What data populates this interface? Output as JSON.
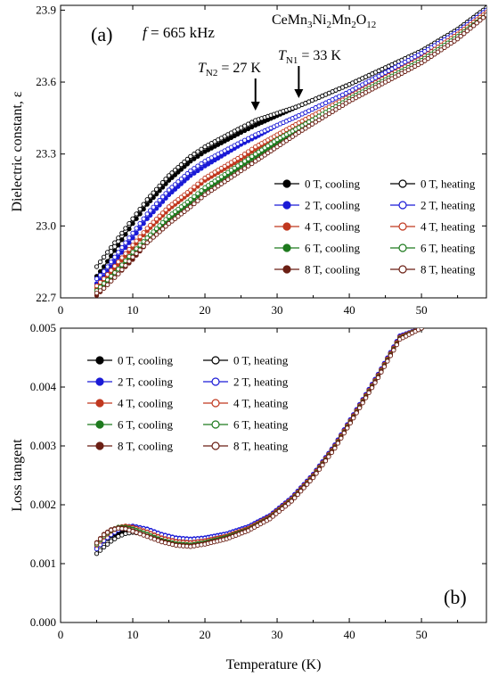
{
  "chart_data": [
    {
      "type": "line",
      "panel_label": "(a)",
      "annotation_freq": {
        "italic": "f",
        "rest": " = 665 kHz"
      },
      "compound": {
        "parts": [
          [
            "CeMn",
            false
          ],
          [
            "3",
            true
          ],
          [
            "Ni",
            false
          ],
          [
            "2",
            true
          ],
          [
            "Mn",
            false
          ],
          [
            "2",
            true
          ],
          [
            "O",
            false
          ],
          [
            "12",
            true
          ]
        ]
      },
      "transitions": [
        {
          "T": "T",
          "sub": "N2",
          "rest": " = 27 K",
          "x": 27
        },
        {
          "T": "T",
          "sub": "N1",
          "rest": " = 33 K",
          "x": 33
        }
      ],
      "ylabel": "Dielectric constant, ε",
      "xlim": [
        0,
        59
      ],
      "ylim": [
        22.7,
        23.92
      ],
      "xticks": [
        "0",
        "10",
        "20",
        "30",
        "40",
        "50"
      ],
      "yticks": [
        "22.7",
        "23.0",
        "23.3",
        "23.6",
        "23.9"
      ],
      "legend_position": "lower-right",
      "x": [
        5,
        6,
        8,
        10,
        12,
        15,
        18,
        20,
        25,
        27,
        30,
        33,
        40,
        45,
        50,
        55,
        59
      ],
      "series": [
        {
          "name": "0 T, cooling",
          "color": "#000000",
          "filled": true,
          "values": [
            22.79,
            22.83,
            22.92,
            23.01,
            23.09,
            23.19,
            23.27,
            23.31,
            23.39,
            23.42,
            23.46,
            23.5,
            23.59,
            23.66,
            23.73,
            23.82,
            23.91
          ]
        },
        {
          "name": "0 T, heating",
          "color": "#000000",
          "filled": false,
          "values": [
            22.83,
            22.87,
            22.95,
            23.03,
            23.11,
            23.21,
            23.29,
            23.33,
            23.41,
            23.44,
            23.47,
            23.5,
            23.59,
            23.66,
            23.73,
            23.82,
            23.91
          ]
        },
        {
          "name": "2 T, cooling",
          "color": "#1a1ad6",
          "filled": true,
          "values": [
            22.76,
            22.79,
            22.87,
            22.95,
            23.03,
            23.13,
            23.21,
            23.25,
            23.34,
            23.37,
            23.42,
            23.46,
            23.56,
            23.64,
            23.72,
            23.81,
            23.9
          ]
        },
        {
          "name": "2 T, heating",
          "color": "#1a1ad6",
          "filled": false,
          "values": [
            22.78,
            22.81,
            22.89,
            22.97,
            23.05,
            23.15,
            23.23,
            23.27,
            23.35,
            23.38,
            23.42,
            23.46,
            23.56,
            23.64,
            23.72,
            23.81,
            23.9
          ]
        },
        {
          "name": "4 T, cooling",
          "color": "#c0381f",
          "filled": true,
          "values": [
            22.74,
            22.77,
            22.84,
            22.91,
            22.98,
            23.07,
            23.14,
            23.19,
            23.28,
            23.32,
            23.38,
            23.43,
            23.54,
            23.62,
            23.7,
            23.8,
            23.89
          ]
        },
        {
          "name": "4 T, heating",
          "color": "#c0381f",
          "filled": false,
          "values": [
            22.75,
            22.78,
            22.85,
            22.92,
            22.99,
            23.08,
            23.15,
            23.2,
            23.29,
            23.33,
            23.38,
            23.43,
            23.54,
            23.62,
            23.7,
            23.8,
            23.89
          ]
        },
        {
          "name": "6 T, cooling",
          "color": "#1e7a1e",
          "filled": true,
          "values": [
            22.73,
            22.75,
            22.82,
            22.88,
            22.95,
            23.03,
            23.1,
            23.15,
            23.25,
            23.29,
            23.35,
            23.41,
            23.53,
            23.61,
            23.69,
            23.79,
            23.88
          ]
        },
        {
          "name": "6 T, heating",
          "color": "#1e7a1e",
          "filled": false,
          "values": [
            22.73,
            22.76,
            22.82,
            22.89,
            22.95,
            23.04,
            23.11,
            23.16,
            23.26,
            23.3,
            23.36,
            23.41,
            23.53,
            23.61,
            23.69,
            23.79,
            23.88
          ]
        },
        {
          "name": "8 T, cooling",
          "color": "#6b1f14",
          "filled": true,
          "values": [
            22.71,
            22.74,
            22.8,
            22.86,
            22.93,
            23.01,
            23.08,
            23.13,
            23.23,
            23.27,
            23.33,
            23.39,
            23.52,
            23.6,
            23.68,
            23.78,
            23.88
          ]
        },
        {
          "name": "8 T, heating",
          "color": "#6b1f14",
          "filled": false,
          "values": [
            22.72,
            22.74,
            22.8,
            22.87,
            22.93,
            23.01,
            23.08,
            23.13,
            23.23,
            23.27,
            23.33,
            23.39,
            23.52,
            23.6,
            23.68,
            23.78,
            23.88
          ]
        }
      ]
    },
    {
      "type": "line",
      "panel_label": "(b)",
      "xlabel": "Temperature (K)",
      "ylabel": "Loss tangent",
      "xlim": [
        0,
        59
      ],
      "ylim": [
        0,
        0.005
      ],
      "xticks": [
        "0",
        "10",
        "20",
        "30",
        "40",
        "50"
      ],
      "yticks": [
        "0.000",
        "0.001",
        "0.002",
        "0.003",
        "0.004",
        "0.005"
      ],
      "legend_position": "upper-left",
      "x": [
        5,
        6,
        7,
        8,
        9,
        10,
        12,
        14,
        16,
        18,
        20,
        23,
        26,
        29,
        32,
        35,
        38,
        41,
        44,
        47,
        50
      ],
      "series": [
        {
          "name": "0 T, cooling",
          "color": "#000000",
          "filled": true,
          "values": [
            0.00125,
            0.00138,
            0.00147,
            0.00152,
            0.00154,
            0.00154,
            0.00149,
            0.00142,
            0.00137,
            0.00136,
            0.00139,
            0.00147,
            0.0016,
            0.0018,
            0.0021,
            0.0025,
            0.003,
            0.0036,
            0.0042,
            0.00485,
            0.005
          ]
        },
        {
          "name": "0 T, heating",
          "color": "#000000",
          "filled": false,
          "values": [
            0.00117,
            0.00128,
            0.00138,
            0.00146,
            0.00151,
            0.00153,
            0.0015,
            0.00144,
            0.00139,
            0.00137,
            0.0014,
            0.00148,
            0.00161,
            0.00181,
            0.00211,
            0.00251,
            0.00301,
            0.00361,
            0.00421,
            0.00486,
            0.005
          ]
        },
        {
          "name": "2 T, cooling",
          "color": "#1a1ad6",
          "filled": true,
          "values": [
            0.00128,
            0.00142,
            0.00152,
            0.00159,
            0.00163,
            0.00164,
            0.00159,
            0.0015,
            0.00144,
            0.00142,
            0.00144,
            0.00151,
            0.00163,
            0.00182,
            0.00212,
            0.00252,
            0.00302,
            0.00362,
            0.00422,
            0.00487,
            0.005
          ]
        },
        {
          "name": "2 T, heating",
          "color": "#1a1ad6",
          "filled": false,
          "values": [
            0.00125,
            0.00139,
            0.00149,
            0.00157,
            0.00162,
            0.00163,
            0.00158,
            0.00149,
            0.00143,
            0.00141,
            0.00143,
            0.0015,
            0.00162,
            0.00181,
            0.00211,
            0.00251,
            0.00301,
            0.00361,
            0.00421,
            0.00486,
            0.005
          ]
        },
        {
          "name": "4 T, cooling",
          "color": "#c0381f",
          "filled": true,
          "values": [
            0.00132,
            0.00146,
            0.00156,
            0.00162,
            0.00164,
            0.00162,
            0.00154,
            0.00144,
            0.00138,
            0.00136,
            0.00139,
            0.00147,
            0.0016,
            0.0018,
            0.0021,
            0.0025,
            0.003,
            0.0036,
            0.0042,
            0.00485,
            0.005
          ]
        },
        {
          "name": "4 T, heating",
          "color": "#c0381f",
          "filled": false,
          "values": [
            0.00131,
            0.00145,
            0.00155,
            0.00161,
            0.00163,
            0.00161,
            0.00153,
            0.00143,
            0.00137,
            0.00135,
            0.00138,
            0.00146,
            0.00159,
            0.00179,
            0.00209,
            0.00249,
            0.00299,
            0.00359,
            0.00419,
            0.00484,
            0.005
          ]
        },
        {
          "name": "6 T, cooling",
          "color": "#1e7a1e",
          "filled": true,
          "values": [
            0.00134,
            0.00148,
            0.00157,
            0.00162,
            0.00162,
            0.00159,
            0.0015,
            0.0014,
            0.00134,
            0.00132,
            0.00136,
            0.00145,
            0.00158,
            0.00178,
            0.00208,
            0.00248,
            0.00298,
            0.00358,
            0.00418,
            0.00483,
            0.005
          ]
        },
        {
          "name": "6 T, heating",
          "color": "#1e7a1e",
          "filled": false,
          "values": [
            0.00133,
            0.00147,
            0.00156,
            0.00161,
            0.00161,
            0.00158,
            0.00149,
            0.00139,
            0.00133,
            0.00131,
            0.00135,
            0.00144,
            0.00157,
            0.00177,
            0.00207,
            0.00247,
            0.00297,
            0.00357,
            0.00417,
            0.00482,
            0.005
          ]
        },
        {
          "name": "8 T, cooling",
          "color": "#6b1f14",
          "filled": true,
          "values": [
            0.00136,
            0.0015,
            0.00158,
            0.00161,
            0.0016,
            0.00156,
            0.00147,
            0.00138,
            0.00132,
            0.0013,
            0.00134,
            0.00143,
            0.00157,
            0.00177,
            0.00207,
            0.00247,
            0.00297,
            0.00357,
            0.00417,
            0.00482,
            0.005
          ]
        },
        {
          "name": "8 T, heating",
          "color": "#6b1f14",
          "filled": false,
          "values": [
            0.00135,
            0.00149,
            0.00157,
            0.0016,
            0.00159,
            0.00155,
            0.00146,
            0.00137,
            0.00131,
            0.00129,
            0.00133,
            0.00142,
            0.00156,
            0.00176,
            0.00206,
            0.00246,
            0.00296,
            0.00356,
            0.00416,
            0.00481,
            0.005
          ]
        }
      ]
    }
  ]
}
